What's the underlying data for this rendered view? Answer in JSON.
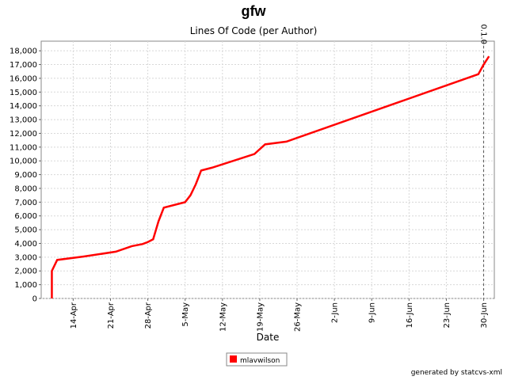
{
  "chart_data": {
    "type": "line",
    "title": "gfw",
    "subtitle": "Lines Of Code (per Author)",
    "x_label": "Date",
    "x": [
      "10-Apr",
      "10-Apr",
      "11-Apr",
      "16-Apr",
      "22-Apr",
      "25-Apr",
      "27-Apr",
      "28-Apr",
      "29-Apr",
      "30-Apr",
      "1-May",
      "5-May",
      "6-May",
      "7-May",
      "8-May",
      "10-May",
      "18-May",
      "20-May",
      "24-May",
      "29-Jun",
      "30-Jun",
      "1-Jul"
    ],
    "series": [
      {
        "name": "mlavwilson",
        "color": "#ff0000",
        "values": [
          0,
          2000,
          2800,
          3050,
          3400,
          3800,
          3950,
          4100,
          4300,
          5600,
          6600,
          7000,
          7500,
          8300,
          9300,
          9500,
          10500,
          11200,
          11400,
          16300,
          17000,
          17600
        ]
      }
    ],
    "xlim": [
      "8-Apr",
      "2-Jul"
    ],
    "xticks": [
      "14-Apr",
      "21-Apr",
      "28-Apr",
      "5-May",
      "12-May",
      "19-May",
      "26-May",
      "2-Jun",
      "9-Jun",
      "16-Jun",
      "23-Jun",
      "30-Jun"
    ],
    "ylim": [
      0,
      18700
    ],
    "yticks": [
      0,
      {
        "value": 1000,
        "label": "1,000"
      },
      {
        "value": 2000,
        "label": "2,000"
      },
      {
        "value": 3000,
        "label": "3,000"
      },
      {
        "value": 4000,
        "label": "4,000"
      },
      {
        "value": 5000,
        "label": "5,000"
      },
      {
        "value": 6000,
        "label": "6,000"
      },
      {
        "value": 7000,
        "label": "7,000"
      },
      {
        "value": 8000,
        "label": "8,000"
      },
      {
        "value": 9000,
        "label": "9,000"
      },
      {
        "value": 10000,
        "label": "10,000"
      },
      {
        "value": 11000,
        "label": "11,000"
      },
      {
        "value": 12000,
        "label": "12,000"
      },
      {
        "value": 13000,
        "label": "13,000"
      },
      {
        "value": 14000,
        "label": "14,000"
      },
      {
        "value": 15000,
        "label": "15,000"
      },
      {
        "value": 16000,
        "label": "16,000"
      },
      {
        "value": 17000,
        "label": "17,000"
      },
      {
        "value": 18000,
        "label": "18,000"
      }
    ],
    "grid": true,
    "annotations": [
      {
        "x": "30-Jun",
        "label": "0.1.0"
      }
    ],
    "legend": "bottom",
    "footer": "generated by statcvs-xml"
  }
}
